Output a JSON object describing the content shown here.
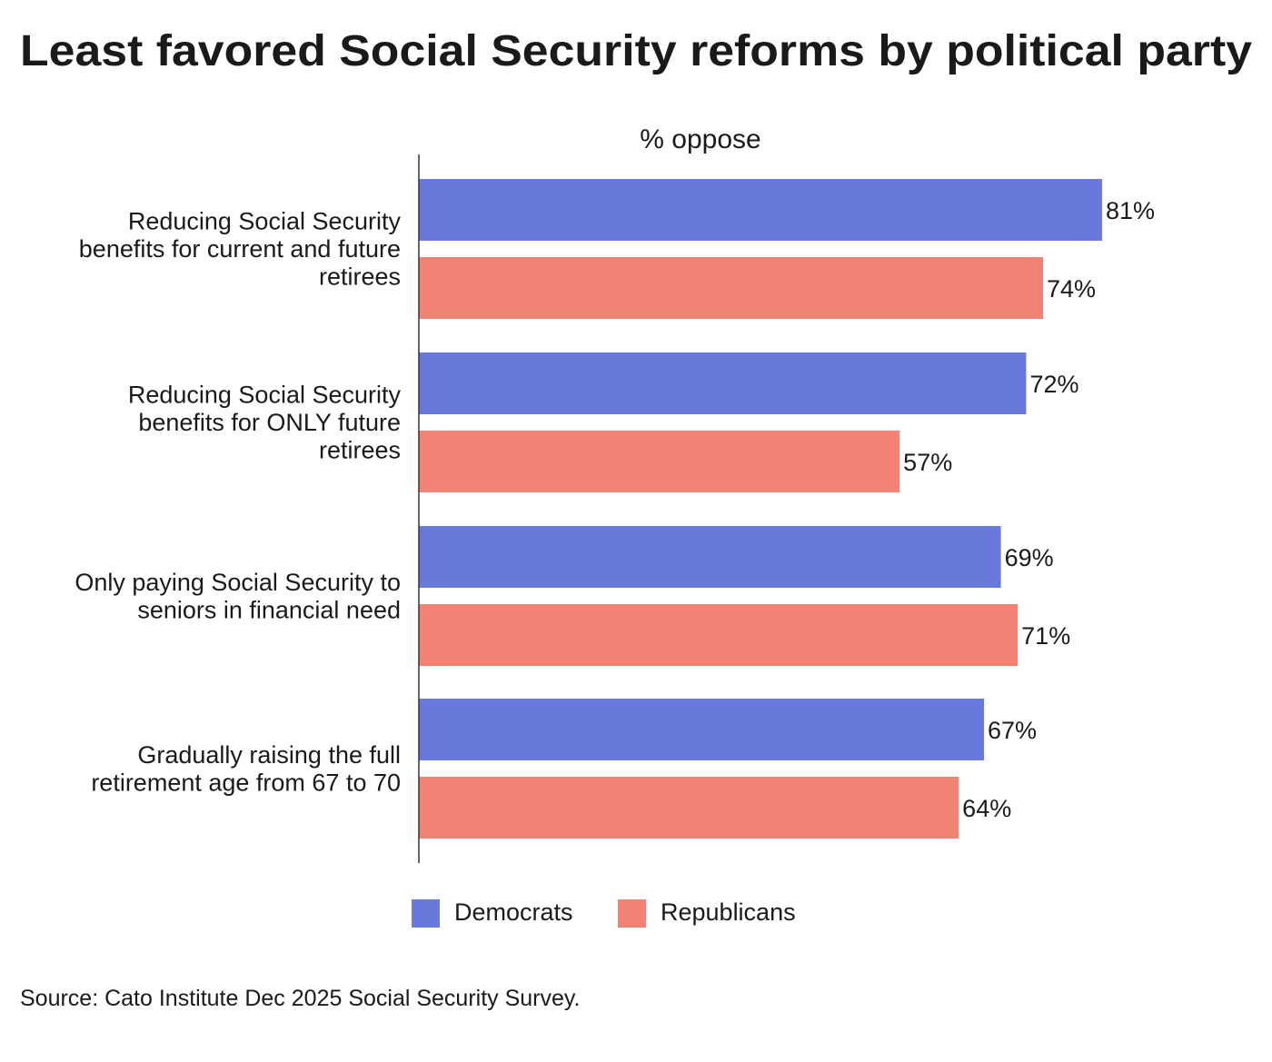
{
  "chart_data": {
    "type": "bar",
    "orientation": "horizontal",
    "title": "Least favored Social Security reforms by political party",
    "xlabel": "% oppose",
    "ylabel": "",
    "xlim": [
      0,
      81
    ],
    "grid": false,
    "categories": [
      "Reducing Social Security\nbenefits for current and future\nretirees",
      "Reducing Social Security\nbenefits for ONLY future\nretirees",
      "Only paying Social Security to\nseniors in financial need",
      "Gradually raising the full\nretirement age from 67 to 70"
    ],
    "series": [
      {
        "name": "Democrats",
        "color": "#6979db",
        "values": [
          81,
          72,
          69,
          67
        ],
        "labels": [
          "81%",
          "72%",
          "69%",
          "67%"
        ]
      },
      {
        "name": "Republicans",
        "color": "#f28274",
        "values": [
          74,
          57,
          71,
          64
        ],
        "labels": [
          "74%",
          "57%",
          "71%",
          "64%"
        ]
      }
    ],
    "legend_position": "bottom",
    "source": "Source: Cato Institute Dec 2025 Social Security Survey."
  }
}
